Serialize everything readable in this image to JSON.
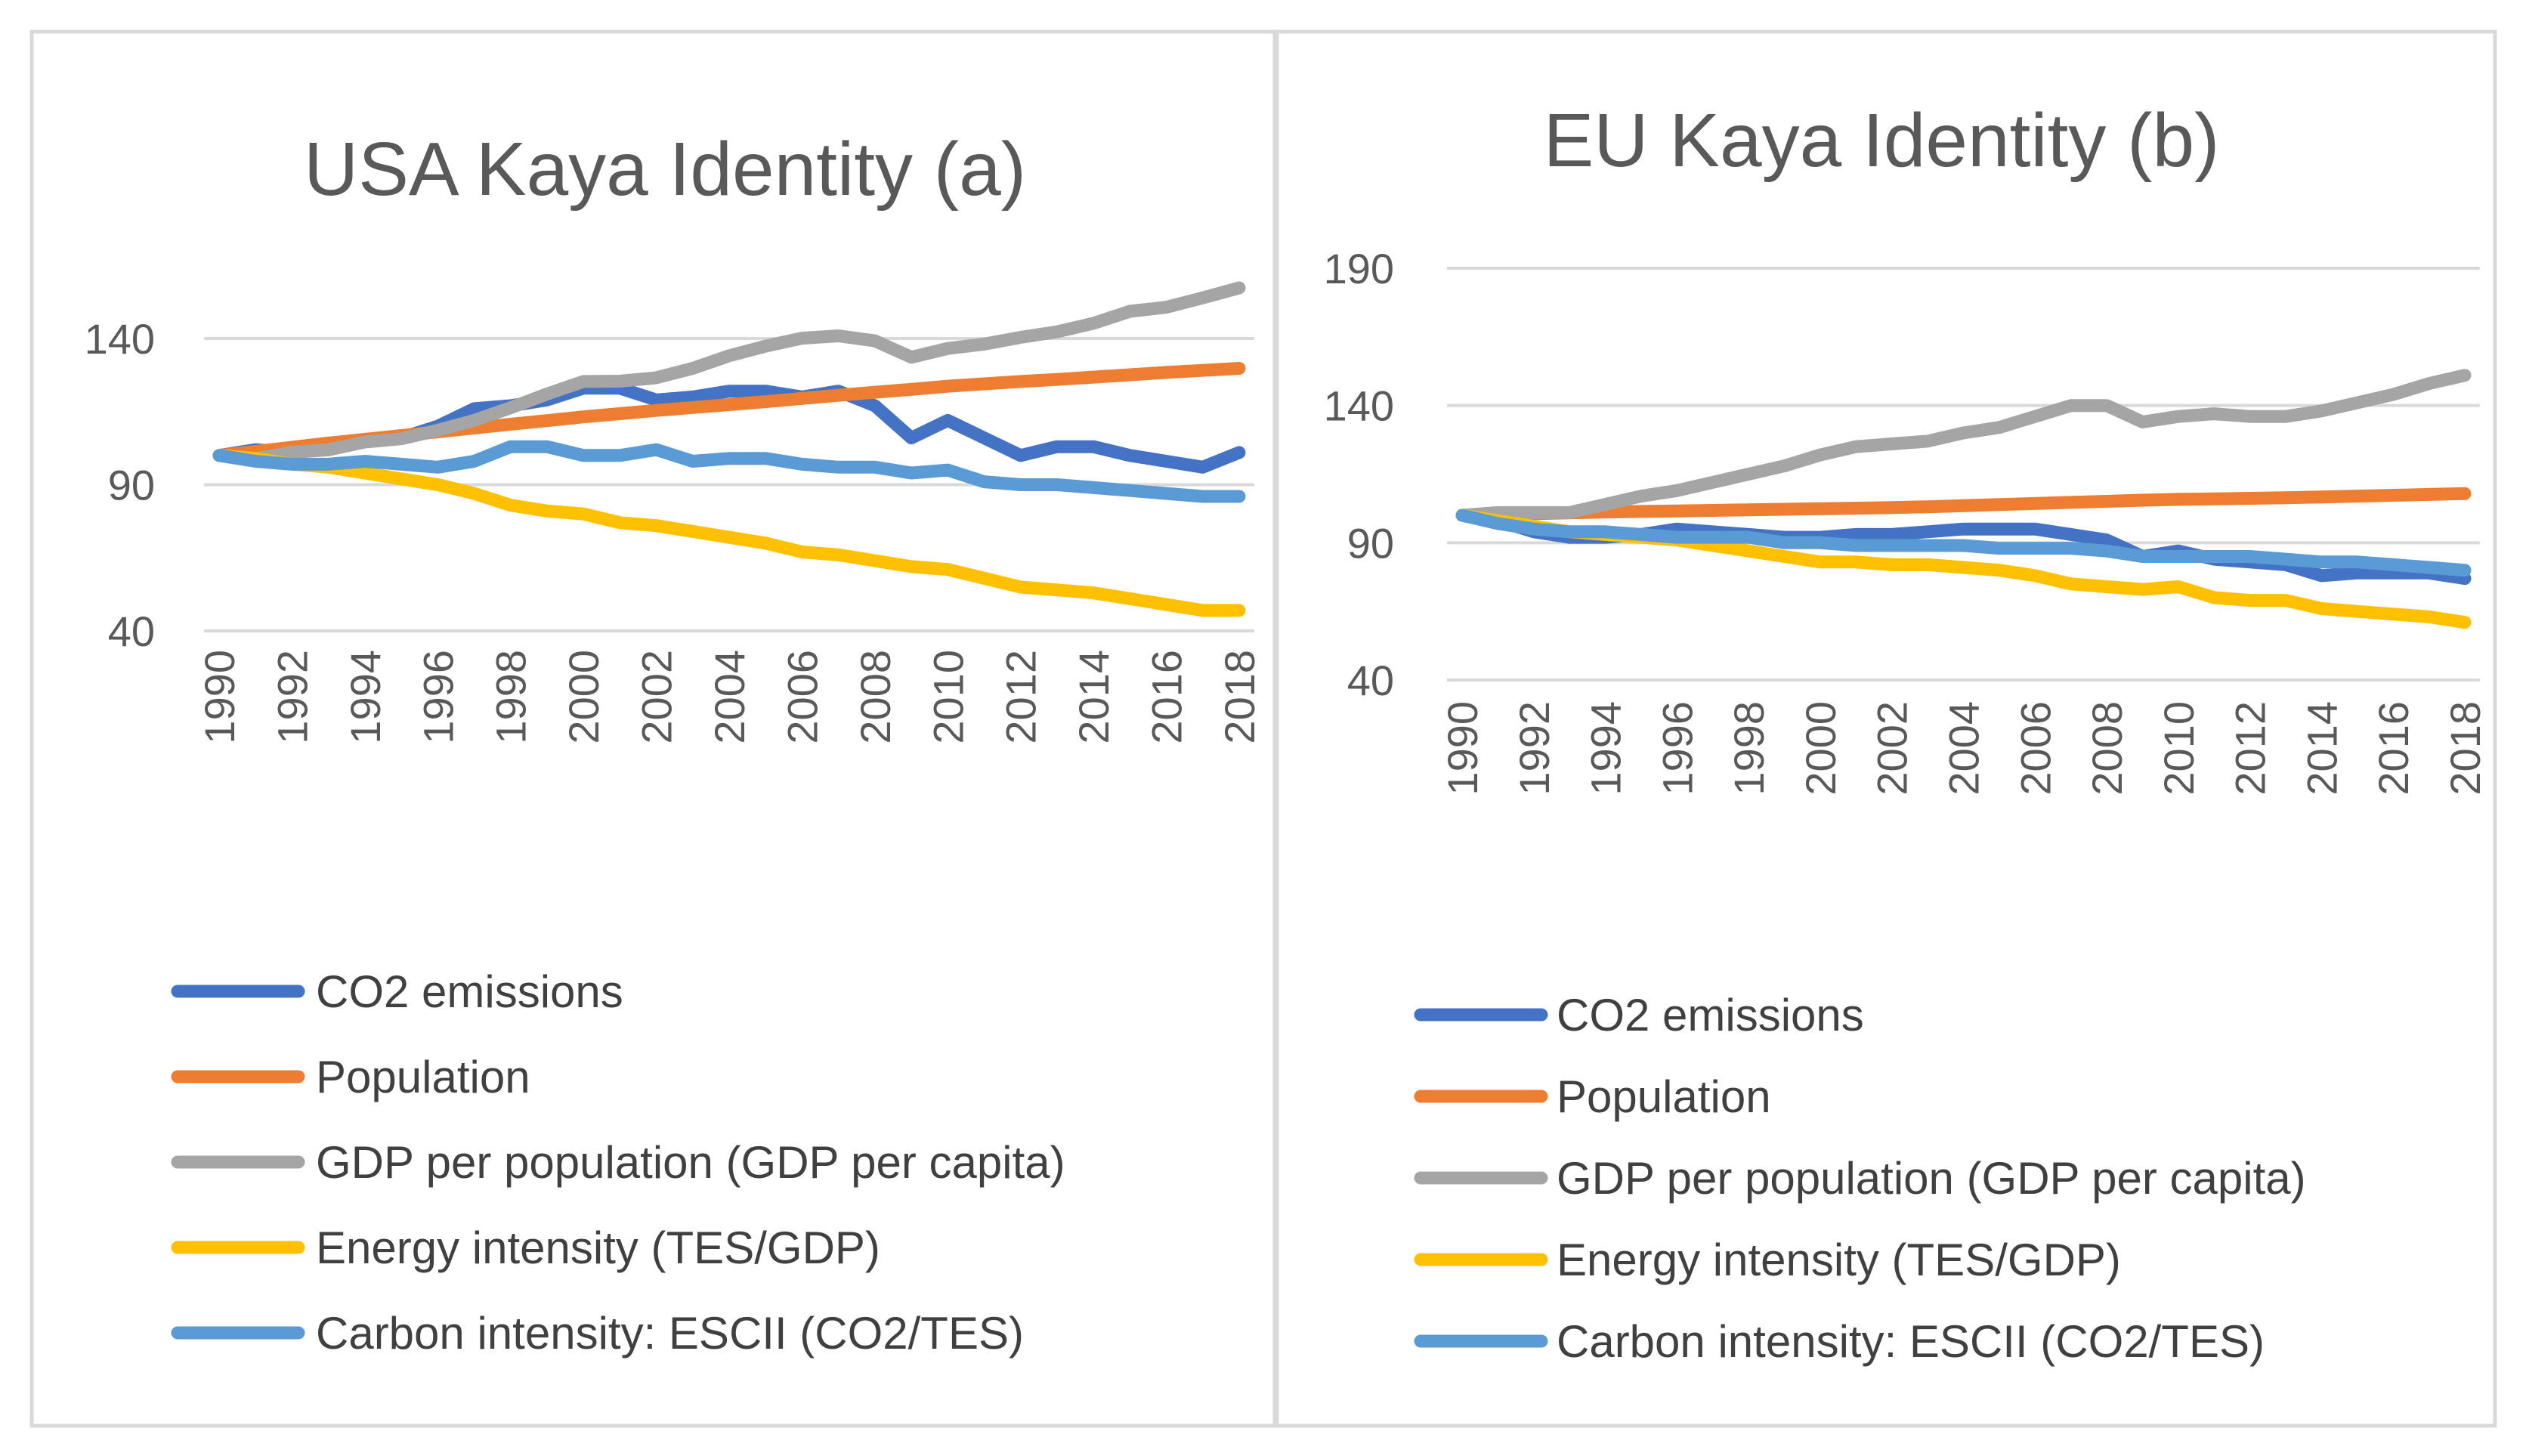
{
  "figure": {
    "charts": [
      "chart-a",
      "chart-b"
    ]
  },
  "chart_data": [
    {
      "id": "chart-a",
      "type": "line",
      "title": "USA Kaya Identity (a)",
      "xlabel": "",
      "ylabel": "",
      "ylim": [
        40,
        140
      ],
      "yticks": [
        40,
        90,
        140
      ],
      "x": [
        1990,
        1991,
        1992,
        1993,
        1994,
        1995,
        1996,
        1997,
        1998,
        1999,
        2000,
        2001,
        2002,
        2003,
        2004,
        2005,
        2006,
        2007,
        2008,
        2009,
        2010,
        2011,
        2012,
        2013,
        2014,
        2015,
        2016,
        2017,
        2018
      ],
      "x_tick_labels": [
        "1990",
        "1992",
        "1994",
        "1996",
        "1998",
        "2000",
        "2002",
        "2004",
        "2006",
        "2008",
        "2010",
        "2012",
        "2014",
        "2016",
        "2018"
      ],
      "legend_position": "bottom",
      "series": [
        {
          "name": "CO2 emissions",
          "color": "#4472c4",
          "values": [
            100,
            102,
            101,
            103,
            105,
            106,
            110,
            116,
            117,
            119,
            123,
            123,
            119,
            120,
            122,
            122,
            120,
            122,
            117,
            106,
            112,
            106,
            100,
            103,
            103,
            100,
            98,
            96,
            101
          ]
        },
        {
          "name": "Population",
          "color": "#ed7d31",
          "values": [
            100,
            101.4,
            102.8,
            104.2,
            105.5,
            106.8,
            108.1,
            109.4,
            110.7,
            111.9,
            113.2,
            114.3,
            115.4,
            116.4,
            117.4,
            118.4,
            119.5,
            120.6,
            121.6,
            122.6,
            123.7,
            124.5,
            125.3,
            126.0,
            126.8,
            127.6,
            128.4,
            129.1,
            129.8
          ]
        },
        {
          "name": "GDP per population (GDP per capita)",
          "color": "#a5a5a5",
          "values": [
            100,
            98.9,
            101.1,
            101.9,
            104.6,
            105.7,
            108.6,
            112.0,
            116.3,
            121.0,
            125.3,
            125.4,
            126.6,
            129.8,
            134.1,
            137.4,
            140.1,
            140.9,
            139.2,
            133.6,
            136.6,
            138.1,
            140.4,
            142.3,
            145.2,
            149.3,
            150.7,
            153.9,
            157.3
          ]
        },
        {
          "name": "Energy intensity (TES/GDP)",
          "color": "#ffc000",
          "values": [
            100,
            99,
            97,
            96,
            94,
            92,
            90,
            87,
            83,
            81,
            80,
            77,
            76,
            74,
            72,
            70,
            67,
            66,
            64,
            62,
            61,
            58,
            55,
            54,
            53,
            51,
            49,
            47,
            47
          ]
        },
        {
          "name": "Carbon intensity: ESCII (CO2/TES)",
          "color": "#5b9bd5",
          "values": [
            100,
            98,
            97,
            97,
            98,
            97,
            96,
            98,
            103,
            103,
            100,
            100,
            102,
            98,
            99,
            99,
            97,
            96,
            96,
            94,
            95,
            91,
            90,
            90,
            89,
            88,
            87,
            86,
            86
          ]
        }
      ]
    },
    {
      "id": "chart-b",
      "type": "line",
      "title": "EU Kaya Identity (b)",
      "xlabel": "",
      "ylabel": "",
      "ylim": [
        40,
        190
      ],
      "yticks": [
        40,
        90,
        140,
        190
      ],
      "x": [
        1990,
        1991,
        1992,
        1993,
        1994,
        1995,
        1996,
        1997,
        1998,
        1999,
        2000,
        2001,
        2002,
        2003,
        2004,
        2005,
        2006,
        2007,
        2008,
        2009,
        2010,
        2011,
        2012,
        2013,
        2014,
        2015,
        2016,
        2017,
        2018
      ],
      "x_tick_labels": [
        "1990",
        "1992",
        "1994",
        "1996",
        "1998",
        "2000",
        "2002",
        "2004",
        "2006",
        "2008",
        "2010",
        "2012",
        "2014",
        "2016",
        "2018"
      ],
      "legend_position": "bottom",
      "series": [
        {
          "name": "CO2 emissions",
          "color": "#4472c4",
          "values": [
            100,
            98,
            94,
            92,
            92,
            93,
            95,
            94,
            93,
            92,
            92,
            93,
            93,
            94,
            95,
            95,
            95,
            93,
            91,
            85,
            87,
            84,
            83,
            82,
            78,
            79,
            79,
            79,
            77
          ]
        },
        {
          "name": "Population",
          "color": "#ed7d31",
          "values": [
            100,
            100.3,
            100.6,
            100.9,
            101.2,
            101.4,
            101.6,
            101.8,
            102.0,
            102.2,
            102.4,
            102.6,
            102.8,
            103.1,
            103.5,
            103.9,
            104.3,
            104.7,
            105.1,
            105.5,
            105.8,
            106.0,
            106.2,
            106.4,
            106.7,
            107.0,
            107.3,
            107.6,
            107.9
          ]
        },
        {
          "name": "GDP per population (GDP per capita)",
          "color": "#a5a5a5",
          "values": [
            100,
            101,
            101,
            101,
            104,
            107,
            109,
            112,
            115,
            118,
            122,
            125,
            126,
            127,
            130,
            132,
            136,
            140,
            140,
            134,
            136,
            137,
            136,
            136,
            138,
            141,
            144,
            148,
            151
          ]
        },
        {
          "name": "Energy intensity (TES/GDP)",
          "color": "#ffc000",
          "values": [
            100,
            98,
            96,
            94,
            93,
            92,
            91,
            89,
            87,
            85,
            83,
            83,
            82,
            82,
            81,
            80,
            78,
            75,
            74,
            73,
            74,
            70,
            69,
            69,
            66,
            65,
            64,
            63,
            61
          ]
        },
        {
          "name": "Carbon intensity: ESCII (CO2/TES)",
          "color": "#5b9bd5",
          "values": [
            100,
            97,
            95,
            94,
            94,
            93,
            92,
            92,
            92,
            90,
            90,
            89,
            89,
            89,
            89,
            88,
            88,
            88,
            87,
            85,
            85,
            85,
            85,
            84,
            83,
            83,
            82,
            81,
            80
          ]
        }
      ]
    }
  ]
}
